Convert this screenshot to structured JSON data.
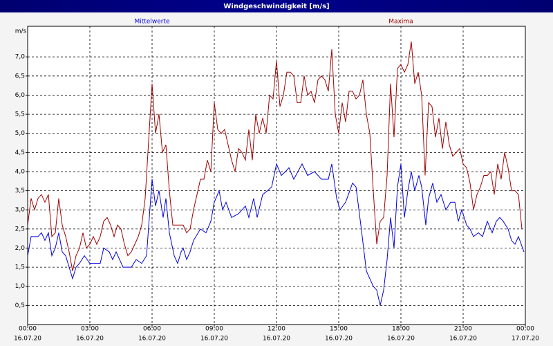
{
  "chart_data": {
    "type": "line",
    "title": "Windgeschwindigkeit [m/s]",
    "y_label": "m/s",
    "xlim": [
      0,
      1440
    ],
    "xticks": [
      {
        "value": 0,
        "label": "00:00",
        "date": "16.07.20"
      },
      {
        "value": 180,
        "label": "03:00",
        "date": "16.07.20"
      },
      {
        "value": 360,
        "label": "06:00",
        "date": "16.07.20"
      },
      {
        "value": 540,
        "label": "09:00",
        "date": "16.07.20"
      },
      {
        "value": 720,
        "label": "12:00",
        "date": "16.07.20"
      },
      {
        "value": 900,
        "label": "15:00",
        "date": "16.07.20"
      },
      {
        "value": 1080,
        "label": "18:00",
        "date": "16.07.20"
      },
      {
        "value": 1260,
        "label": "21:00",
        "date": "16.07.20"
      },
      {
        "value": 1440,
        "label": "00:00",
        "date": "17.07.20"
      }
    ],
    "ylim": [
      0,
      7.8
    ],
    "yticks": [
      {
        "value": 0.5,
        "label": "0,5"
      },
      {
        "value": 1.0,
        "label": "1,0"
      },
      {
        "value": 1.5,
        "label": "1,5"
      },
      {
        "value": 2.0,
        "label": "2,0"
      },
      {
        "value": 2.5,
        "label": "2,5"
      },
      {
        "value": 3.0,
        "label": "3,0"
      },
      {
        "value": 3.5,
        "label": "3,5"
      },
      {
        "value": 4.0,
        "label": "4,0"
      },
      {
        "value": 4.5,
        "label": "4,5"
      },
      {
        "value": 5.0,
        "label": "5,0"
      },
      {
        "value": 5.5,
        "label": "5,5"
      },
      {
        "value": 6.0,
        "label": "6,0"
      },
      {
        "value": 6.5,
        "label": "6,5"
      },
      {
        "value": 7.0,
        "label": "7,0"
      }
    ],
    "grid": true,
    "series": [
      {
        "name": "Mittelwerte",
        "color": "#0000e0",
        "x": [
          0,
          10,
          30,
          40,
          50,
          60,
          70,
          80,
          90,
          100,
          110,
          120,
          130,
          140,
          150,
          164,
          180,
          210,
          220,
          236,
          246,
          256,
          276,
          300,
          314,
          330,
          344,
          360,
          370,
          380,
          392,
          400,
          410,
          424,
          434,
          444,
          450,
          460,
          470,
          480,
          500,
          516,
          530,
          540,
          554,
          564,
          574,
          590,
          610,
          630,
          640,
          654,
          664,
          680,
          694,
          706,
          720,
          734,
          746,
          756,
          770,
          794,
          810,
          830,
          850,
          870,
          880,
          894,
          904,
          920,
          940,
          950,
          964,
          980,
          990,
          1000,
          1010,
          1020,
          1030,
          1040,
          1050,
          1060,
          1070,
          1080,
          1090,
          1100,
          1110,
          1120,
          1132,
          1140,
          1152,
          1160,
          1172,
          1184,
          1196,
          1210,
          1224,
          1236,
          1246,
          1256,
          1270,
          1280,
          1290,
          1304,
          1316,
          1330,
          1344,
          1356,
          1366,
          1376,
          1390,
          1400,
          1410,
          1420,
          1436
        ],
        "values": [
          1.8,
          2.3,
          2.3,
          2.4,
          2.2,
          2.4,
          1.8,
          2.0,
          2.4,
          1.9,
          1.8,
          1.5,
          1.2,
          1.5,
          1.6,
          1.8,
          1.6,
          1.6,
          2.0,
          1.9,
          1.7,
          1.9,
          1.5,
          1.5,
          1.7,
          1.6,
          1.8,
          3.8,
          3.1,
          3.5,
          2.8,
          3.3,
          2.4,
          1.8,
          1.6,
          1.9,
          2.0,
          1.7,
          1.9,
          2.2,
          2.5,
          2.4,
          2.7,
          3.2,
          3.5,
          3.0,
          3.2,
          2.8,
          2.9,
          3.1,
          2.8,
          3.3,
          2.8,
          3.4,
          3.5,
          3.6,
          4.2,
          3.9,
          4.0,
          4.1,
          3.8,
          4.2,
          3.9,
          4.0,
          3.8,
          3.8,
          4.2,
          3.3,
          3.0,
          3.2,
          3.7,
          3.6,
          2.6,
          1.4,
          1.2,
          1.0,
          0.9,
          0.5,
          0.9,
          1.7,
          2.8,
          2.0,
          3.6,
          4.2,
          2.8,
          3.5,
          4.0,
          3.5,
          3.9,
          3.6,
          2.6,
          3.3,
          3.7,
          3.2,
          3.4,
          3.0,
          3.2,
          3.2,
          2.7,
          3.0,
          2.6,
          2.5,
          2.3,
          2.4,
          2.3,
          2.7,
          2.4,
          2.7,
          2.8,
          2.7,
          2.5,
          2.2,
          2.1,
          2.3,
          1.9
        ]
      },
      {
        "name": "Maxima",
        "color": "#a00000",
        "x": [
          0,
          10,
          20,
          30,
          40,
          50,
          60,
          70,
          80,
          90,
          100,
          110,
          120,
          130,
          140,
          150,
          160,
          170,
          180,
          190,
          200,
          210,
          220,
          230,
          240,
          250,
          260,
          270,
          280,
          290,
          300,
          310,
          320,
          330,
          340,
          350,
          360,
          370,
          380,
          390,
          400,
          410,
          420,
          430,
          440,
          450,
          460,
          470,
          480,
          490,
          500,
          510,
          520,
          530,
          540,
          550,
          560,
          570,
          580,
          590,
          600,
          610,
          620,
          630,
          640,
          650,
          660,
          670,
          680,
          690,
          700,
          710,
          720,
          730,
          740,
          750,
          760,
          770,
          780,
          790,
          800,
          810,
          820,
          830,
          840,
          850,
          860,
          870,
          880,
          890,
          900,
          910,
          920,
          930,
          940,
          950,
          960,
          970,
          980,
          990,
          1000,
          1010,
          1020,
          1030,
          1040,
          1050,
          1060,
          1070,
          1080,
          1090,
          1100,
          1110,
          1120,
          1130,
          1140,
          1150,
          1160,
          1170,
          1180,
          1190,
          1200,
          1210,
          1220,
          1230,
          1240,
          1250,
          1260,
          1270,
          1280,
          1290,
          1300,
          1310,
          1320,
          1330,
          1340,
          1350,
          1360,
          1370,
          1380,
          1390,
          1400,
          1410,
          1420,
          1430
        ],
        "values": [
          2.6,
          3.3,
          3.0,
          3.3,
          3.4,
          3.2,
          3.4,
          2.3,
          2.4,
          3.3,
          2.6,
          2.3,
          1.9,
          1.4,
          1.8,
          2.0,
          2.4,
          2.0,
          2.1,
          2.3,
          2.1,
          2.3,
          2.7,
          2.8,
          2.6,
          2.3,
          2.6,
          2.5,
          2.1,
          1.8,
          1.9,
          2.1,
          2.3,
          2.6,
          3.3,
          4.8,
          6.3,
          5.0,
          5.5,
          4.5,
          4.7,
          3.5,
          2.6,
          2.6,
          2.6,
          2.6,
          2.4,
          2.5,
          3.0,
          3.4,
          3.8,
          3.8,
          4.3,
          4.0,
          5.8,
          5.1,
          5.0,
          5.1,
          4.7,
          4.3,
          4.0,
          4.6,
          4.5,
          4.3,
          5.1,
          4.3,
          5.5,
          5.0,
          5.4,
          5.0,
          6.0,
          5.9,
          6.9,
          5.7,
          6.0,
          6.6,
          6.6,
          6.5,
          5.8,
          5.8,
          6.5,
          6.0,
          6.1,
          5.8,
          6.4,
          6.5,
          6.4,
          6.1,
          7.2,
          5.5,
          5.0,
          5.8,
          5.3,
          6.1,
          6.1,
          5.9,
          6.0,
          6.4,
          5.5,
          5.0,
          3.5,
          2.1,
          2.7,
          2.8,
          3.9,
          6.3,
          4.9,
          6.7,
          6.8,
          6.6,
          6.8,
          7.4,
          6.3,
          6.6,
          6.0,
          3.9,
          5.8,
          5.7,
          4.9,
          5.4,
          4.6,
          5.3,
          4.7,
          4.4,
          4.5,
          4.6,
          4.2,
          4.1,
          3.7,
          3.0,
          3.4,
          3.6,
          3.9,
          3.9,
          4.0,
          3.4,
          4.2,
          3.8,
          4.5,
          4.1,
          3.5,
          3.5,
          3.4,
          2.5
        ]
      }
    ]
  }
}
